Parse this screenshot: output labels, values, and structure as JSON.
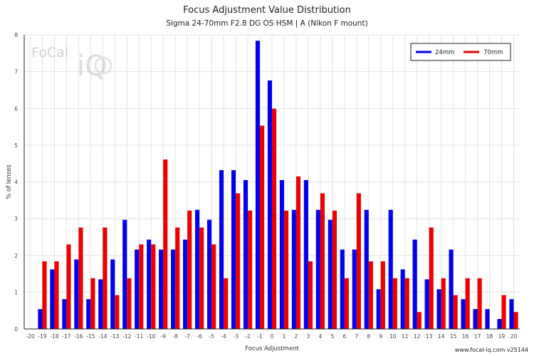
{
  "header": {
    "title": "Focus Adjustment Value Distribution",
    "subtitle": "Sigma 24-70mm F2.8 DG OS HSM | A (Nikon F mount)"
  },
  "footer": {
    "credit": "www.focal-iq.com v25144"
  },
  "logo": {
    "text": "FoCal",
    "mark": "iQ"
  },
  "colors": {
    "series_24mm": "#0000ee",
    "series_70mm": "#ee0000",
    "grid": "#e2e2e2"
  },
  "chart_data": {
    "type": "bar",
    "xlabel": "Focus Adjustment",
    "ylabel": "% of lenses",
    "categories": [
      -20,
      -19,
      -18,
      -17,
      -16,
      -15,
      -14,
      -13,
      -12,
      -11,
      -10,
      -9,
      -8,
      -7,
      -6,
      -5,
      -4,
      -3,
      -2,
      -1,
      0,
      1,
      2,
      3,
      4,
      5,
      6,
      7,
      8,
      9,
      10,
      11,
      12,
      13,
      14,
      15,
      16,
      17,
      18,
      19,
      20
    ],
    "ylim": [
      0,
      8
    ],
    "yticks": [
      0,
      1,
      2,
      3,
      4,
      5,
      6,
      7,
      8
    ],
    "grid": true,
    "legend_position": "top-right",
    "series": [
      {
        "name": "24mm",
        "values": [
          0,
          0.54,
          1.62,
          0.81,
          1.89,
          0.81,
          1.35,
          1.89,
          2.97,
          2.16,
          2.43,
          2.16,
          2.16,
          2.43,
          3.24,
          2.97,
          4.32,
          4.32,
          4.05,
          7.84,
          6.76,
          4.05,
          3.24,
          4.05,
          3.24,
          2.97,
          2.16,
          2.16,
          3.24,
          1.08,
          3.24,
          1.62,
          2.43,
          1.35,
          1.08,
          2.16,
          0.81,
          0.54,
          0.54,
          0.27,
          0.81
        ]
      },
      {
        "name": "70mm",
        "values": [
          0,
          1.84,
          1.84,
          2.3,
          2.76,
          1.38,
          2.76,
          0.92,
          1.38,
          2.3,
          2.3,
          4.61,
          2.76,
          3.22,
          2.76,
          2.3,
          1.38,
          3.69,
          3.22,
          5.53,
          5.99,
          3.22,
          4.15,
          1.84,
          3.69,
          3.22,
          1.38,
          3.69,
          1.84,
          1.84,
          1.38,
          1.38,
          0.46,
          2.76,
          1.38,
          0.92,
          1.38,
          1.38,
          0,
          0.92,
          0.46
        ]
      }
    ]
  }
}
